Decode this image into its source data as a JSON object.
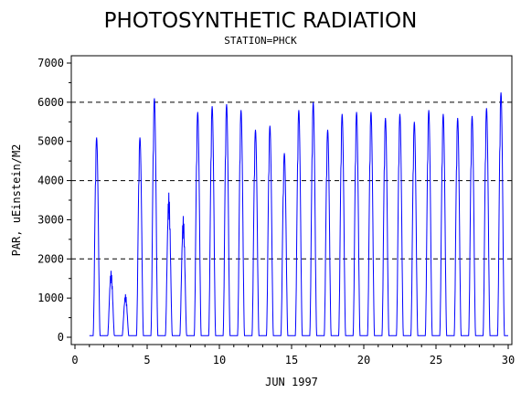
{
  "chart_data": {
    "type": "line",
    "title": "PHOTOSYNTHETIC RADIATION",
    "subtitle": "STATION=PHCK",
    "xlabel": "JUN 1997",
    "ylabel": "PAR, uEinstein/M2",
    "xlim": [
      0,
      30
    ],
    "ylim": [
      0,
      7000
    ],
    "x_ticks": [
      0,
      5,
      10,
      15,
      20,
      25,
      30
    ],
    "x_tick_labels": [
      "0",
      "5",
      "10",
      "15",
      "20",
      "25",
      "30"
    ],
    "y_ticks": [
      0,
      1000,
      2000,
      3000,
      4000,
      5000,
      6000,
      7000
    ],
    "y_tick_labels": [
      "0",
      "1000",
      "2000",
      "3000",
      "4000",
      "5000",
      "6000",
      "7000"
    ],
    "reference_lines_y": [
      2000,
      4000,
      6000
    ],
    "grid": false,
    "series": [
      {
        "color": "#0000ff",
        "daily_peaks": [
          {
            "day": 1,
            "peak": 5100
          },
          {
            "day": 2,
            "peak": 1700
          },
          {
            "day": 3,
            "peak": 1100
          },
          {
            "day": 4,
            "peak": 5100
          },
          {
            "day": 5,
            "peak": 6100
          },
          {
            "day": 6,
            "peak": 3700
          },
          {
            "day": 7,
            "peak": 3100
          },
          {
            "day": 8,
            "peak": 5750
          },
          {
            "day": 9,
            "peak": 5900
          },
          {
            "day": 10,
            "peak": 5950
          },
          {
            "day": 11,
            "peak": 5800
          },
          {
            "day": 12,
            "peak": 5300
          },
          {
            "day": 13,
            "peak": 5400
          },
          {
            "day": 14,
            "peak": 4700
          },
          {
            "day": 15,
            "peak": 5800
          },
          {
            "day": 16,
            "peak": 6000
          },
          {
            "day": 17,
            "peak": 5300
          },
          {
            "day": 18,
            "peak": 5700
          },
          {
            "day": 19,
            "peak": 5750
          },
          {
            "day": 20,
            "peak": 5750
          },
          {
            "day": 21,
            "peak": 5600
          },
          {
            "day": 22,
            "peak": 5700
          },
          {
            "day": 23,
            "peak": 5500
          },
          {
            "day": 24,
            "peak": 5800
          },
          {
            "day": 25,
            "peak": 5700
          },
          {
            "day": 26,
            "peak": 5600
          },
          {
            "day": 27,
            "peak": 5650
          },
          {
            "day": 28,
            "peak": 5850
          },
          {
            "day": 29,
            "peak": 6250
          }
        ]
      }
    ]
  }
}
